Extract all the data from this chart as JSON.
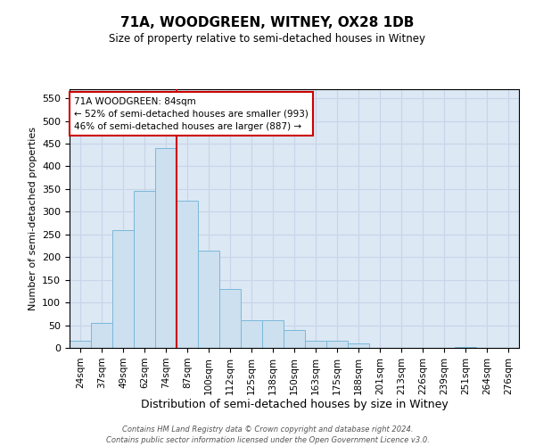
{
  "title": "71A, WOODGREEN, WITNEY, OX28 1DB",
  "subtitle": "Size of property relative to semi-detached houses in Witney",
  "xlabel": "Distribution of semi-detached houses by size in Witney",
  "ylabel": "Number of semi-detached properties",
  "footnote": "Contains HM Land Registry data © Crown copyright and database right 2024.\nContains public sector information licensed under the Open Government Licence v3.0.",
  "bins": [
    "24sqm",
    "37sqm",
    "49sqm",
    "62sqm",
    "74sqm",
    "87sqm",
    "100sqm",
    "112sqm",
    "125sqm",
    "138sqm",
    "150sqm",
    "163sqm",
    "175sqm",
    "188sqm",
    "201sqm",
    "213sqm",
    "226sqm",
    "239sqm",
    "251sqm",
    "264sqm",
    "276sqm"
  ],
  "bar_values": [
    15,
    55,
    260,
    345,
    440,
    325,
    215,
    130,
    60,
    60,
    40,
    15,
    15,
    10,
    0,
    0,
    0,
    0,
    2,
    0,
    0
  ],
  "bar_color": "#cce0f0",
  "bar_edge_color": "#7ab8d9",
  "vline_x": 4.5,
  "vline_color": "#cc0000",
  "annotation_text": "71A WOODGREEN: 84sqm\n← 52% of semi-detached houses are smaller (993)\n46% of semi-detached houses are larger (887) →",
  "annotation_box_color": "#ffffff",
  "annotation_box_edge": "#cc0000",
  "ylim": [
    0,
    570
  ],
  "yticks": [
    0,
    50,
    100,
    150,
    200,
    250,
    300,
    350,
    400,
    450,
    500,
    550
  ],
  "grid_color": "#c8d4e8",
  "bg_color": "#dce8f4"
}
